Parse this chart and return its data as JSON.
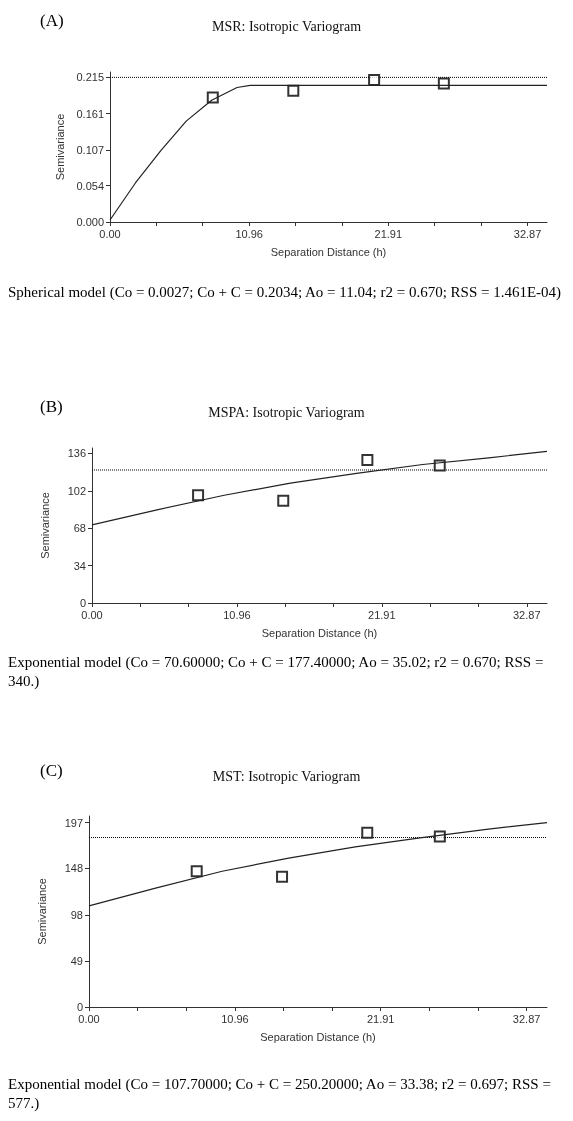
{
  "chart_data": [
    {
      "type": "scatter",
      "title": "MSR: Isotropic Variogram",
      "xlabel": "Separation Distance (h)",
      "ylabel": "Semivariance",
      "annotations": [
        "(A)",
        "Spherical model (Co = 0.0027; Co + C = 0.2034; Ao = 11.04; r2 = 0.670; RSS = 1.461E-04)"
      ],
      "xlim": [
        0,
        34.4
      ],
      "xticks": [
        {
          "value": 0,
          "label": "0.00"
        },
        {
          "value": 3.65,
          "label": null
        },
        {
          "value": 7.3,
          "label": null
        },
        10.96,
        {
          "value": 14.61,
          "label": null
        },
        {
          "value": 18.26,
          "label": null
        },
        21.91,
        {
          "value": 25.56,
          "label": null
        },
        {
          "value": 29.22,
          "label": null
        },
        32.87
      ],
      "ylim": [
        0,
        0.223
      ],
      "yticks": [
        {
          "value": 0,
          "label": "0.000"
        },
        0.054,
        0.107,
        0.161,
        0.215
      ],
      "grid": false,
      "series": [
        {
          "marker": "square",
          "color": "#000000",
          "x": [
            8.09,
            14.43,
            20.79,
            26.28
          ],
          "values": [
            0.185,
            0.195,
            0.211,
            0.206
          ]
        },
        {
          "type": "line",
          "marker": "none",
          "line_style": "solid",
          "color": "#222222",
          "x": [
            0,
            2,
            4,
            6,
            8,
            10,
            11.04,
            34.4
          ],
          "values": [
            0.003,
            0.058,
            0.106,
            0.15,
            0.181,
            0.2,
            0.203,
            0.203
          ]
        }
      ],
      "ref_lines": [
        {
          "axis": "y",
          "value": 0.215,
          "label": null,
          "color": "#000000",
          "line_style": "dotted"
        }
      ]
    },
    {
      "type": "scatter",
      "title": "MSPA: Isotropic Variogram",
      "xlabel": "Separation Distance (h)",
      "ylabel": "Semivariance",
      "annotations": [
        "(B)",
        "Exponential model (Co = 70.60000; Co + C = 177.40000; Ao = 35.02; r2 = 0.670; RSS = 340.)"
      ],
      "xlim": [
        0,
        34.4
      ],
      "xticks": [
        {
          "value": 0,
          "label": "0.00"
        },
        {
          "value": 3.65,
          "label": null
        },
        {
          "value": 7.3,
          "label": null
        },
        10.96,
        {
          "value": 14.61,
          "label": null
        },
        {
          "value": 18.26,
          "label": null
        },
        21.91,
        {
          "value": 25.56,
          "label": null
        },
        {
          "value": 29.22,
          "label": null
        },
        32.87
      ],
      "ylim": [
        0,
        141
      ],
      "yticks": [
        0,
        34,
        68,
        102,
        136
      ],
      "grid": false,
      "series": [
        {
          "marker": "square",
          "color": "#000000",
          "x": [
            8.02,
            14.46,
            20.82,
            26.29
          ],
          "values": [
            98,
            93,
            130,
            125
          ]
        },
        {
          "type": "line",
          "marker": "none",
          "line_style": "solid",
          "color": "#222222",
          "x": [
            0,
            5,
            10,
            15,
            20,
            25,
            30,
            34.4
          ],
          "values": [
            71,
            85,
            98,
            109,
            118,
            126,
            132,
            138
          ]
        }
      ],
      "ref_lines": [
        {
          "axis": "y",
          "value": 121,
          "label": null,
          "color": "#000000",
          "line_style": "dotted"
        }
      ]
    },
    {
      "type": "scatter",
      "title": "MST: Isotropic Variogram",
      "xlabel": "Separation Distance (h)",
      "ylabel": "Semivariance",
      "annotations": [
        "(C)",
        "Exponential model (Co = 107.70000; Co + C = 250.20000; Ao = 33.38; r2 = 0.697; RSS = 577.)"
      ],
      "xlim": [
        0,
        34.4
      ],
      "xticks": [
        {
          "value": 0,
          "label": "0.00"
        },
        {
          "value": 3.65,
          "label": null
        },
        {
          "value": 7.3,
          "label": null
        },
        10.96,
        {
          "value": 14.61,
          "label": null
        },
        {
          "value": 18.26,
          "label": null
        },
        21.91,
        {
          "value": 25.56,
          "label": null
        },
        {
          "value": 29.22,
          "label": null
        },
        32.87
      ],
      "ylim": [
        0,
        204
      ],
      "yticks": [
        0,
        49,
        98,
        148,
        197
      ],
      "grid": false,
      "series": [
        {
          "marker": "square",
          "color": "#000000",
          "x": [
            8.09,
            14.5,
            20.9,
            26.35
          ],
          "values": [
            145,
            139,
            186,
            182
          ]
        },
        {
          "type": "line",
          "marker": "none",
          "line_style": "solid",
          "color": "#222222",
          "x": [
            0,
            5,
            10,
            15,
            20,
            25,
            30,
            34.4
          ],
          "values": [
            108,
            127,
            145,
            159,
            171,
            181,
            190,
            197
          ]
        }
      ],
      "ref_lines": [
        {
          "axis": "y",
          "value": 181,
          "label": null,
          "color": "#000000",
          "line_style": "dotted"
        }
      ]
    }
  ]
}
